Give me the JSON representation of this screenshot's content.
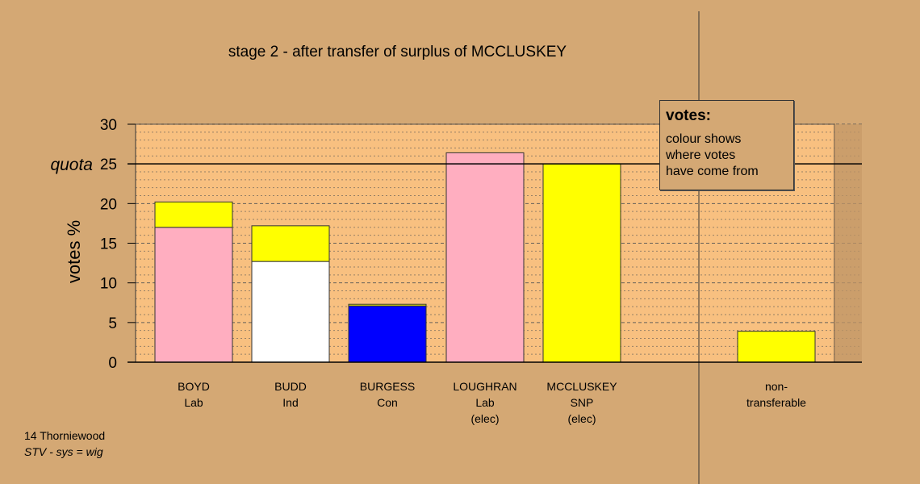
{
  "title": "stage 2 - after transfer of surplus of MCCLUSKEY",
  "legend": {
    "title": "votes:",
    "lines": [
      "colour shows",
      "where votes",
      "have come from"
    ]
  },
  "footer": {
    "ward": "14 Thorniewood",
    "system": "STV - sys = wig"
  },
  "colors": {
    "background": "#d4a874",
    "plot_background": "#f8c080",
    "Lab": "#ffaec0",
    "Ind": "#ffffff",
    "Con": "#0000ff",
    "SNP": "#ffff00"
  },
  "chart_data": {
    "type": "bar",
    "stacked": true,
    "ylabel": "votes %",
    "ylim": [
      0,
      30
    ],
    "yticks": [
      0,
      5,
      10,
      15,
      20,
      25,
      30
    ],
    "quota": {
      "value": 25,
      "label": "quota"
    },
    "grid": true,
    "legend_position": "top-right",
    "categories": [
      {
        "name": "BOYD",
        "party": "Lab",
        "status": "",
        "segments": [
          {
            "from": "Lab",
            "value": 17.0
          },
          {
            "from": "SNP",
            "value": 3.2
          }
        ]
      },
      {
        "name": "BUDD",
        "party": "Ind",
        "status": "",
        "segments": [
          {
            "from": "Ind",
            "value": 12.7
          },
          {
            "from": "SNP",
            "value": 4.5
          }
        ]
      },
      {
        "name": "BURGESS",
        "party": "Con",
        "status": "",
        "segments": [
          {
            "from": "Con",
            "value": 7.1
          },
          {
            "from": "SNP",
            "value": 0.2
          }
        ]
      },
      {
        "name": "LOUGHRAN",
        "party": "Lab",
        "status": "(elec)",
        "segments": [
          {
            "from": "Lab",
            "value": 26.4
          }
        ]
      },
      {
        "name": "MCCLUSKEY",
        "party": "SNP",
        "status": "(elec)",
        "segments": [
          {
            "from": "SNP",
            "value": 25.0
          }
        ]
      },
      {
        "name": "non-",
        "party": "transferable",
        "status": "",
        "segments": [
          {
            "from": "SNP",
            "value": 3.9
          }
        ]
      }
    ]
  }
}
